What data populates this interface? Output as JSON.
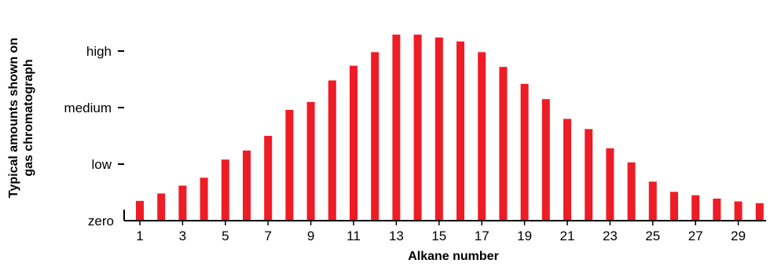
{
  "chart_data": {
    "type": "bar",
    "xlabel": "Alkane number",
    "ylabel_lines": [
      "Typical amounts shown on",
      "gas chromatograph"
    ],
    "categories": [
      1,
      2,
      3,
      4,
      5,
      6,
      7,
      8,
      9,
      10,
      11,
      12,
      13,
      14,
      15,
      16,
      17,
      18,
      19,
      20,
      21,
      22,
      23,
      24,
      25,
      26,
      27,
      28,
      29,
      30
    ],
    "x_tick_labels": [
      "1",
      "3",
      "5",
      "7",
      "9",
      "11",
      "13",
      "15",
      "17",
      "19",
      "21",
      "23",
      "25",
      "27",
      "29"
    ],
    "values": [
      0.35,
      0.48,
      0.62,
      0.76,
      1.08,
      1.24,
      1.5,
      1.96,
      2.1,
      2.48,
      2.74,
      2.98,
      3.29,
      3.29,
      3.24,
      3.17,
      2.98,
      2.72,
      2.42,
      2.15,
      1.8,
      1.62,
      1.28,
      1.03,
      0.69,
      0.51,
      0.45,
      0.39,
      0.34,
      0.31
    ],
    "y_ticks": [
      {
        "label": "zero",
        "value": 0
      },
      {
        "label": "low",
        "value": 1
      },
      {
        "label": "medium",
        "value": 2
      },
      {
        "label": "high",
        "value": 3
      }
    ],
    "ylim": [
      0,
      3.4
    ],
    "bar_color": "#ee1c25",
    "grid": false,
    "legend": "none"
  }
}
